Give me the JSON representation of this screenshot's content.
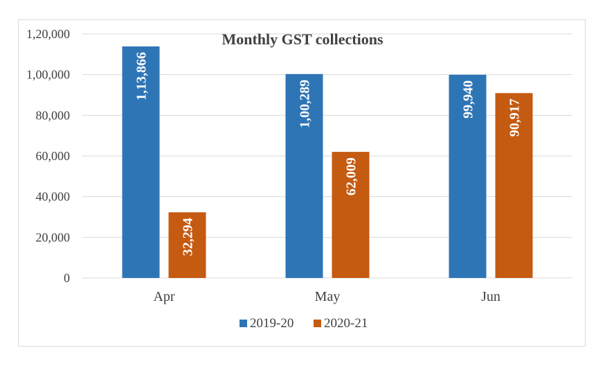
{
  "chart_data": {
    "type": "bar",
    "title": "Monthly GST collections",
    "categories": [
      "Apr",
      "May",
      "Jun"
    ],
    "series": [
      {
        "name": "2019-20",
        "color": "#2e75b6",
        "values": [
          113866,
          100289,
          99940
        ],
        "labels": [
          "1,13,866",
          "1,00,289",
          "99,940"
        ]
      },
      {
        "name": "2020-21",
        "color": "#c55a11",
        "values": [
          32294,
          62009,
          90917
        ],
        "labels": [
          "32,294",
          "62,009",
          "90,917"
        ]
      }
    ],
    "yticks": [
      {
        "value": 0,
        "label": "0"
      },
      {
        "value": 20000,
        "label": "20,000"
      },
      {
        "value": 40000,
        "label": "40,000"
      },
      {
        "value": 60000,
        "label": "60,000"
      },
      {
        "value": 80000,
        "label": "80,000"
      },
      {
        "value": 100000,
        "label": "1,00,000"
      },
      {
        "value": 120000,
        "label": "1,20,000"
      }
    ],
    "ylim": [
      0,
      120000
    ],
    "xlabel": "",
    "ylabel": "",
    "grid": true,
    "legend_position": "bottom",
    "data_labels": "inside-end, rotated"
  }
}
